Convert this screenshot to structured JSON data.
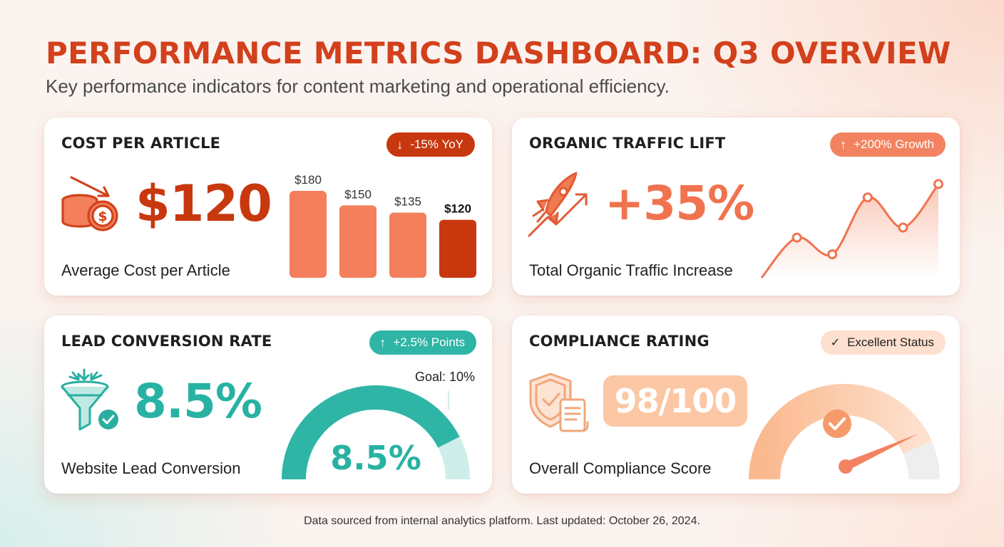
{
  "header": {
    "title": "PERFORMANCE METRICS DASHBOARD: Q3 OVERVIEW",
    "subtitle": "Key performance indicators for content marketing and operational efficiency."
  },
  "cards": {
    "cost": {
      "title": "COST PER ARTICLE",
      "badge_arrow": "↓",
      "badge": "-15% YoY",
      "metric": "$120",
      "subtitle": "Average Cost per Article",
      "icon": "coins-dollar-down-arrow-icon"
    },
    "traffic": {
      "title": "ORGANIC TRAFFIC LIFT",
      "badge_arrow": "↑",
      "badge": "+200% Growth",
      "metric": "+35%",
      "subtitle": "Total Organic Traffic Increase",
      "icon": "rocket-trend-icon"
    },
    "lead": {
      "title": "LEAD CONVERSION RATE",
      "badge_arrow": "↑",
      "badge": "+2.5% Points",
      "metric": "8.5%",
      "subtitle": "Website Lead Conversion",
      "icon": "funnel-check-icon",
      "gauge_label": "8.5%",
      "goal_label": "Goal: 10%"
    },
    "compliance": {
      "title": "COMPLIANCE RATING",
      "badge_arrow": "✓",
      "badge": "Excellent Status",
      "metric": "98/100",
      "subtitle": "Overall Compliance Score",
      "icon": "shield-document-icon"
    }
  },
  "footer": "Data sourced from internal analytics platform. Last updated: October 26, 2024.",
  "colors": {
    "title": "#d2401c",
    "cost_accent": "#c8380f",
    "cost_bars": "#f37f5c",
    "traffic_accent": "#f0734f",
    "lead_accent": "#2fb5a6",
    "lead_track": "#cdeee9",
    "compliance_accent": "#fbc7a4"
  },
  "chart_data": [
    {
      "type": "bar",
      "categories": [
        "",
        "",
        "",
        ""
      ],
      "values": [
        180,
        150,
        135,
        120
      ],
      "data_labels": [
        "$180",
        "$150",
        "$135",
        "$120"
      ],
      "highlight_index": 3,
      "ylim": [
        0,
        180
      ]
    },
    {
      "type": "line",
      "values": [
        0,
        60,
        35,
        120,
        75,
        140
      ],
      "marked_indices": [
        1,
        2,
        3,
        4,
        5
      ],
      "ylim": [
        0,
        150
      ]
    },
    {
      "type": "gauge",
      "value": 8.5,
      "goal": 10,
      "range": [
        0,
        10
      ],
      "label": "8.5%"
    },
    {
      "type": "gauge",
      "value": 98,
      "range": [
        0,
        100
      ]
    }
  ]
}
